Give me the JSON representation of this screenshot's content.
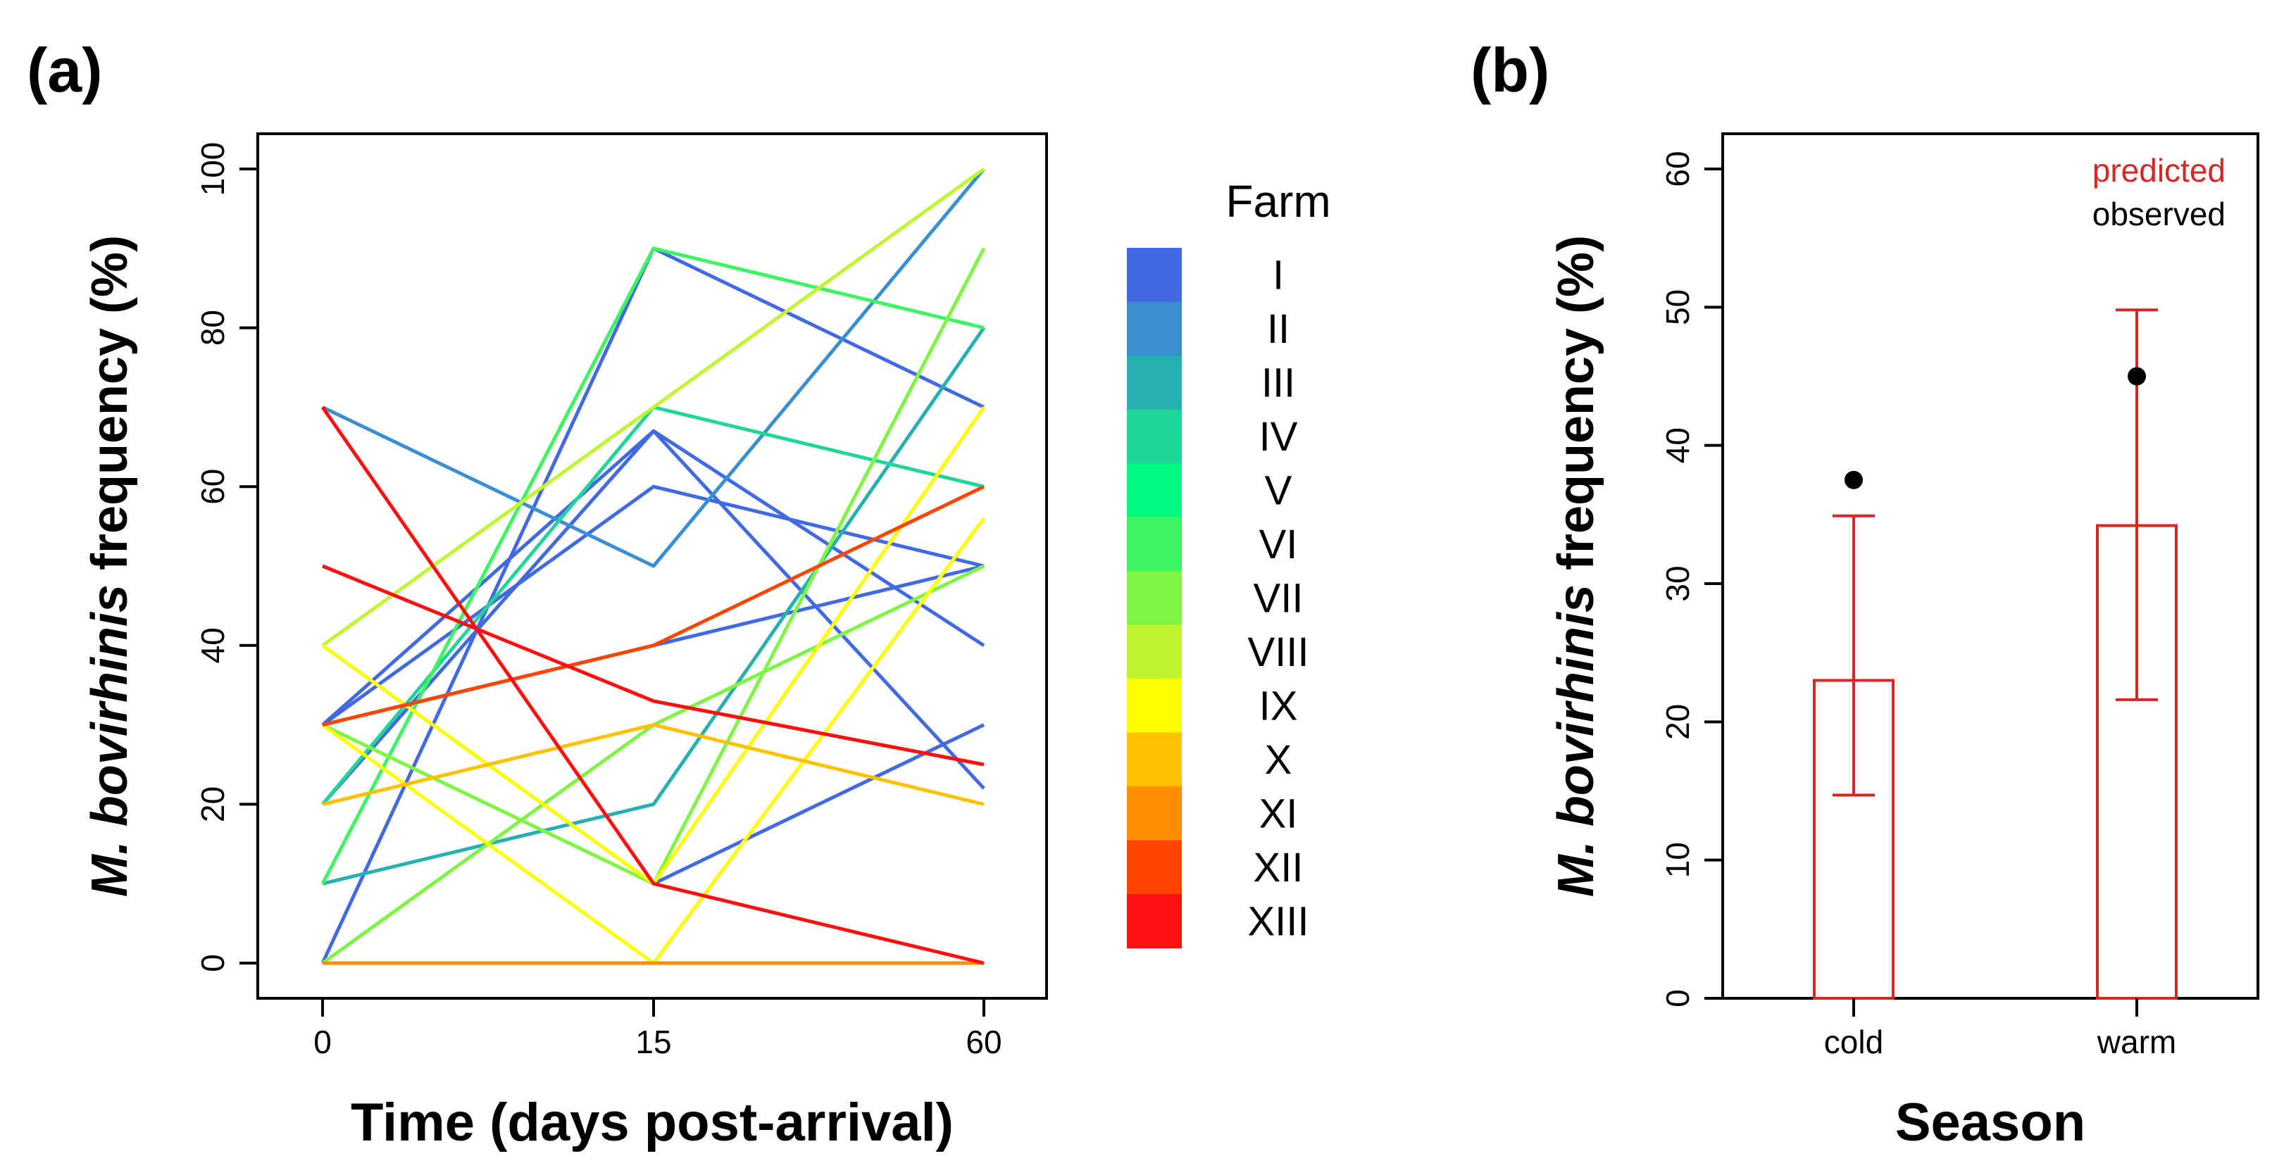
{
  "chart_data": [
    {
      "type": "line",
      "panel_label": "(a)",
      "xlabel": "Time (days post-arrival)",
      "ylabel_italic": "M. bovirhinis",
      "ylabel_rest": " frequency (%)",
      "x": [
        "0",
        "15",
        "60"
      ],
      "yticks": [
        "0",
        "20",
        "40",
        "60",
        "80",
        "100"
      ],
      "ylim": [
        0,
        100
      ],
      "legend": {
        "title": "Farm",
        "entries": [
          "I",
          "II",
          "III",
          "IV",
          "V",
          "VI",
          "VII",
          "VIII",
          "IX",
          "X",
          "XI",
          "XII",
          "XIII"
        ],
        "colors": [
          "#4169E1",
          "#3A8FD0",
          "#26B0B0",
          "#20D59A",
          "#00FA80",
          "#3CF560",
          "#7DF542",
          "#C0F530",
          "#FFFF00",
          "#FFC000",
          "#FF8C00",
          "#FF4500",
          "#FF1010"
        ]
      },
      "series": [
        {
          "color": "#4169E1",
          "values": [
            30,
            67,
            22
          ]
        },
        {
          "color": "#4169E1",
          "values": [
            0,
            90,
            70
          ]
        },
        {
          "color": "#4169E1",
          "values": [
            40,
            10,
            30
          ]
        },
        {
          "color": "#4169E1",
          "values": [
            30,
            60,
            50
          ]
        },
        {
          "color": "#4169E1",
          "values": [
            20,
            67,
            40
          ]
        },
        {
          "color": "#4169E1",
          "values": [
            30,
            40,
            50
          ]
        },
        {
          "color": "#3A8FD0",
          "values": [
            70,
            50,
            100
          ]
        },
        {
          "color": "#26B0B0",
          "values": [
            10,
            20,
            80
          ]
        },
        {
          "color": "#20D59A",
          "values": [
            20,
            70,
            60
          ]
        },
        {
          "color": "#3CF560",
          "values": [
            10,
            90,
            80
          ]
        },
        {
          "color": "#7DF542",
          "values": [
            0,
            30,
            50
          ]
        },
        {
          "color": "#7DF542",
          "values": [
            30,
            10,
            90
          ]
        },
        {
          "color": "#C0F530",
          "values": [
            40,
            70,
            100
          ]
        },
        {
          "color": "#FFFF00",
          "values": [
            40,
            10,
            70
          ]
        },
        {
          "color": "#FFFF00",
          "values": [
            30,
            0,
            56
          ]
        },
        {
          "color": "#FFC000",
          "values": [
            20,
            30,
            20
          ]
        },
        {
          "color": "#FF8C00",
          "values": [
            0,
            0,
            0
          ]
        },
        {
          "color": "#FF4500",
          "values": [
            30,
            40,
            60
          ]
        },
        {
          "color": "#FF1010",
          "values": [
            70,
            10,
            0
          ]
        },
        {
          "color": "#FF1010",
          "values": [
            50,
            33,
            25
          ]
        }
      ]
    },
    {
      "type": "bar",
      "panel_label": "(b)",
      "xlabel": "Season",
      "ylabel_italic": "M. bovirhinis",
      "ylabel_rest": " frequency (%)",
      "categories": [
        "cold",
        "warm"
      ],
      "yticks": [
        "0",
        "10",
        "20",
        "30",
        "40",
        "50",
        "60"
      ],
      "ylim": [
        0,
        60
      ],
      "series": [
        {
          "name": "predicted",
          "color": "#D62728",
          "values": [
            23,
            34.2
          ],
          "ci_low": [
            14.7,
            21.6
          ],
          "ci_high": [
            34.9,
            49.8
          ]
        },
        {
          "name": "observed",
          "color": "#000000",
          "values": [
            37.5,
            45
          ]
        }
      ],
      "legend": [
        "predicted",
        "observed"
      ]
    }
  ]
}
